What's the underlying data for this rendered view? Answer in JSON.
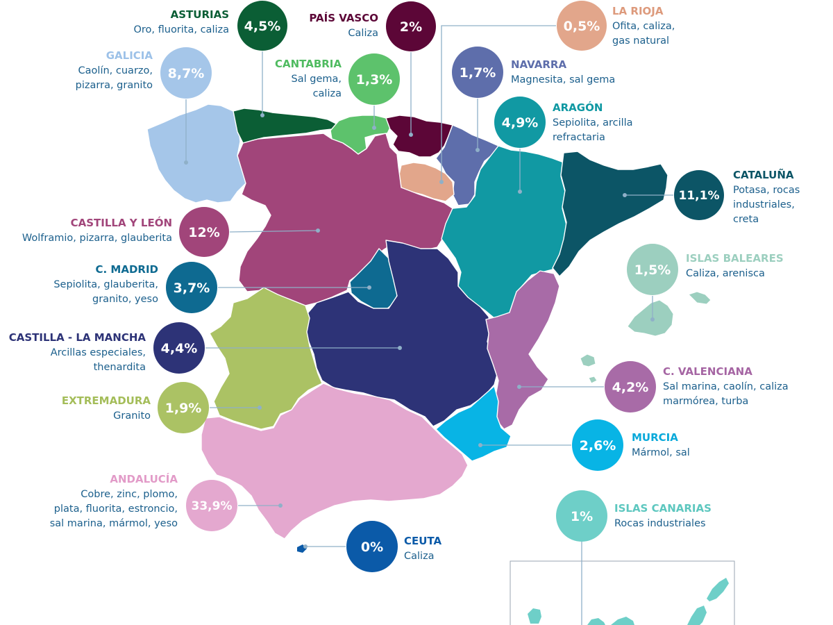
{
  "regions": [
    {
      "id": "asturias",
      "name": "ASTURIAS",
      "minerals": [
        "Oro, fluorita, caliza"
      ],
      "percent": "4,5%",
      "color": "#0b5e35",
      "name_color": "#0b5e35"
    },
    {
      "id": "pais-vasco",
      "name": "PAÍS VASCO",
      "minerals": [
        "Caliza"
      ],
      "percent": "2%",
      "color": "#5c0637",
      "name_color": "#5c0637"
    },
    {
      "id": "la-rioja",
      "name": "LA RIOJA",
      "minerals": [
        "Ofita, caliza,",
        "gas natural"
      ],
      "percent": "0,5%",
      "color": "#e2a68b",
      "name_color": "#dd9a7c"
    },
    {
      "id": "galicia",
      "name": "GALICIA",
      "minerals": [
        "Caolín, cuarzo,",
        "pizarra, granito"
      ],
      "percent": "8,7%",
      "color": "#a5c6e9",
      "name_color": "#9cc1e8"
    },
    {
      "id": "cantabria",
      "name": "CANTABRIA",
      "minerals": [
        "Sal gema,",
        "caliza"
      ],
      "percent": "1,3%",
      "color": "#5dc26c",
      "name_color": "#4fbb60"
    },
    {
      "id": "navarra",
      "name": "NAVARRA",
      "minerals": [
        "Magnesita, sal gema"
      ],
      "percent": "1,7%",
      "color": "#5e6eab",
      "name_color": "#5e6eab"
    },
    {
      "id": "aragon",
      "name": "ARAGÓN",
      "minerals": [
        "Sepiolita, arcilla",
        "refractaria"
      ],
      "percent": "4,9%",
      "color": "#1199a3",
      "name_color": "#0f98a2"
    },
    {
      "id": "cataluna",
      "name": "CATALUÑA",
      "minerals": [
        "Potasa, rocas",
        "industriales,",
        "creta"
      ],
      "percent": "11,1%",
      "color": "#0c5566",
      "name_color": "#0c5566"
    },
    {
      "id": "castilla-leon",
      "name": "CASTILLA Y LEÓN",
      "minerals": [
        "Wolframio, pizarra, glauberita"
      ],
      "percent": "12%",
      "color": "#a1457a",
      "name_color": "#a1457a"
    },
    {
      "id": "islas-baleares",
      "name": "ISLAS BALEARES",
      "minerals": [
        "Caliza, arenisca"
      ],
      "percent": "1,5%",
      "color": "#9ccfbf",
      "name_color": "#9ccfbf"
    },
    {
      "id": "madrid",
      "name": "C. MADRID",
      "minerals": [
        "Sepiolita, glauberita,",
        "granito, yeso"
      ],
      "percent": "3,7%",
      "color": "#0e6a91",
      "name_color": "#0e6a91"
    },
    {
      "id": "castilla-la-mancha",
      "name": "CASTILLA - LA MANCHA",
      "minerals": [
        "Arcillas  especiales,",
        "thenardita"
      ],
      "percent": "4,4%",
      "color": "#2d3377",
      "name_color": "#2d3377"
    },
    {
      "id": "valenciana",
      "name": "C. VALENCIANA",
      "minerals": [
        "Sal marina,  caolín, caliza",
        "marmórea, turba"
      ],
      "percent": "4,2%",
      "color": "#a86ba7",
      "name_color": "#a565a3"
    },
    {
      "id": "extremadura",
      "name": "EXTREMADURA",
      "minerals": [
        "Granito"
      ],
      "percent": "1,9%",
      "color": "#abc264",
      "name_color": "#a4bd59"
    },
    {
      "id": "murcia",
      "name": "MURCIA",
      "minerals": [
        "Mármol, sal"
      ],
      "percent": "2,6%",
      "color": "#08b4e5",
      "name_color": "#08a9da"
    },
    {
      "id": "andalucia",
      "name": "ANDALUCÍA",
      "minerals": [
        "Cobre, zinc, plomo,",
        "plata, fluorita, estroncio,",
        "sal marina, mármol, yeso"
      ],
      "percent": "33,9%",
      "color": "#e4a8cf",
      "name_color": "#e29bc8"
    },
    {
      "id": "islas-canarias",
      "name": "ISLAS CANARIAS",
      "minerals": [
        "Rocas industriales"
      ],
      "percent": "1%",
      "color": "#6ecfc8",
      "name_color": "#5dc7bf"
    },
    {
      "id": "ceuta",
      "name": "CEUTA",
      "minerals": [
        "Caliza"
      ],
      "percent": "0%",
      "color": "#0b5aa8",
      "name_color": "#0b5aa8"
    }
  ]
}
